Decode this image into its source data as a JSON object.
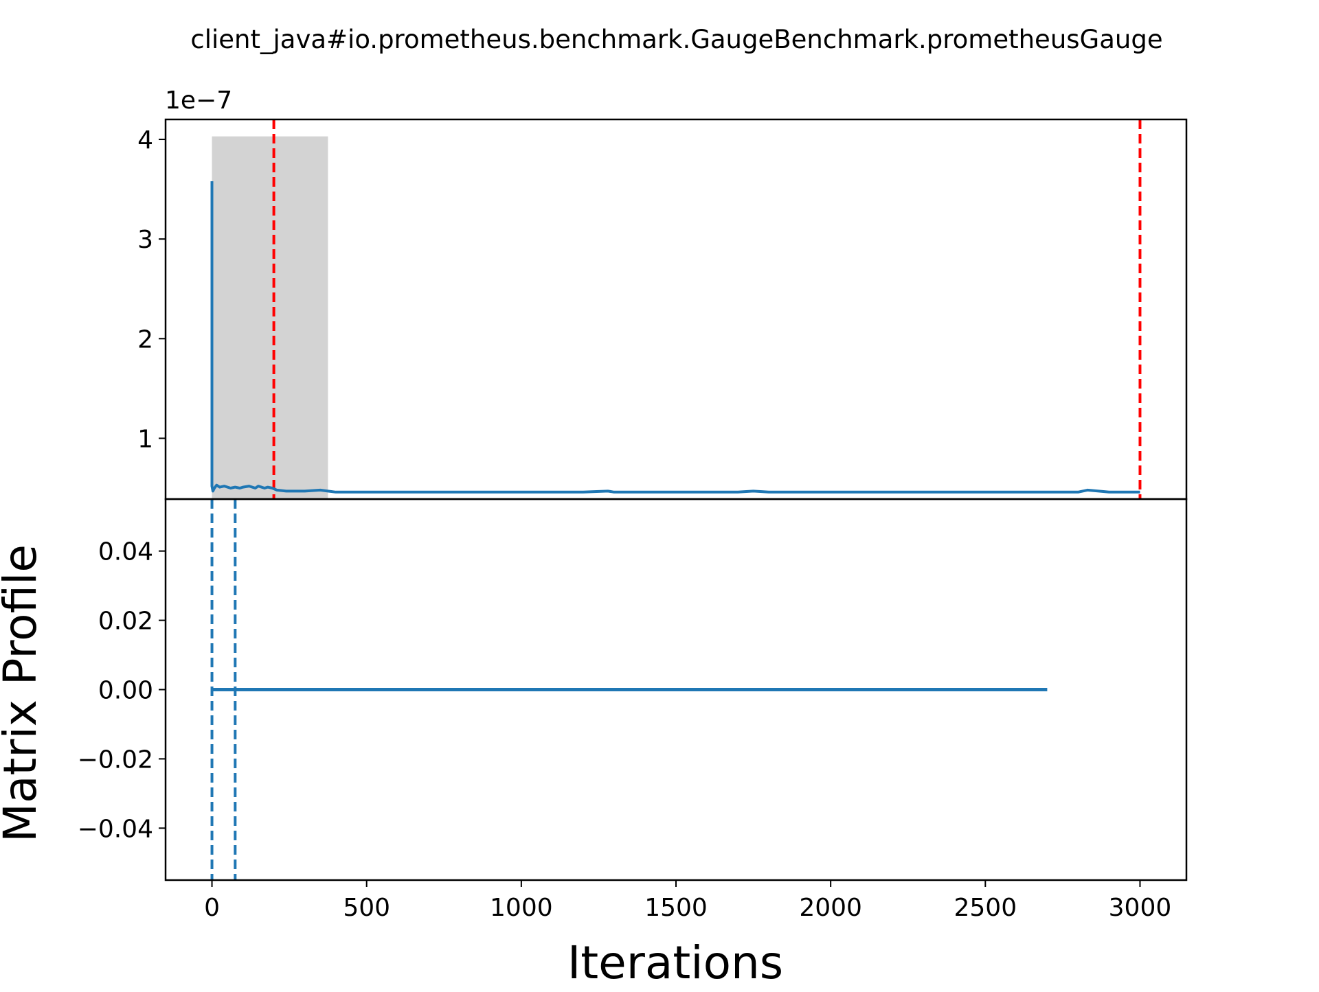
{
  "title": "client_java#io.prometheus.benchmark.GaugeBenchmark.prometheusGauge",
  "colors": {
    "series": "#1f77b4",
    "change_point": "#ff0000",
    "shade": "#d3d3d3",
    "axes": "#000000"
  },
  "chart_data": [
    {
      "type": "line",
      "panel": "top",
      "title": "client_java#io.prometheus.benchmark.GaugeBenchmark.prometheusGauge",
      "xlabel": "",
      "ylabel": "",
      "offset_text": "1e−7",
      "xlim": [
        -150,
        3150
      ],
      "ylim": [
        0.39,
        4.2
      ],
      "y_unit_multiplier": 1e-07,
      "yticks": [
        1,
        2,
        3,
        4
      ],
      "ytick_labels": [
        "1",
        "2",
        "3",
        "4"
      ],
      "shaded_region": {
        "x_start": 0,
        "x_end": 375,
        "y_top": 4.03
      },
      "change_points": [
        200,
        3000
      ],
      "series": {
        "x": [
          0,
          0,
          3,
          8,
          15,
          25,
          40,
          60,
          75,
          90,
          100,
          120,
          140,
          150,
          170,
          180,
          195,
          210,
          240,
          300,
          350,
          375,
          400,
          500,
          600,
          700,
          800,
          900,
          1000,
          1100,
          1200,
          1280,
          1300,
          1400,
          1500,
          1600,
          1700,
          1750,
          1800,
          1900,
          2000,
          2100,
          2200,
          2300,
          2400,
          2500,
          2600,
          2700,
          2800,
          2830,
          2900,
          3000
        ],
        "y": [
          3.58,
          0.52,
          0.47,
          0.5,
          0.53,
          0.51,
          0.52,
          0.5,
          0.51,
          0.5,
          0.51,
          0.52,
          0.5,
          0.52,
          0.5,
          0.51,
          0.5,
          0.48,
          0.47,
          0.47,
          0.48,
          0.47,
          0.46,
          0.46,
          0.46,
          0.46,
          0.46,
          0.46,
          0.46,
          0.46,
          0.46,
          0.47,
          0.46,
          0.46,
          0.46,
          0.46,
          0.46,
          0.47,
          0.46,
          0.46,
          0.46,
          0.46,
          0.46,
          0.46,
          0.46,
          0.46,
          0.46,
          0.46,
          0.46,
          0.48,
          0.46,
          0.46
        ]
      }
    },
    {
      "type": "line",
      "panel": "bottom",
      "xlabel": "Iterations",
      "ylabel": "Matrix Profile",
      "xlim": [
        -150,
        3150
      ],
      "ylim": [
        -0.055,
        0.055
      ],
      "xticks": [
        0,
        500,
        1000,
        1500,
        2000,
        2500,
        3000
      ],
      "xtick_labels": [
        "0",
        "500",
        "1000",
        "1500",
        "2000",
        "2500",
        "3000"
      ],
      "yticks": [
        0.04,
        0.02,
        0.0,
        -0.02,
        -0.04
      ],
      "ytick_labels": [
        "0.04",
        "0.02",
        "0.00",
        "−0.02",
        "−0.04"
      ],
      "motif_lines": [
        0,
        75
      ],
      "series": {
        "x": [
          0,
          2700
        ],
        "y": [
          0.0,
          0.0
        ]
      }
    }
  ]
}
